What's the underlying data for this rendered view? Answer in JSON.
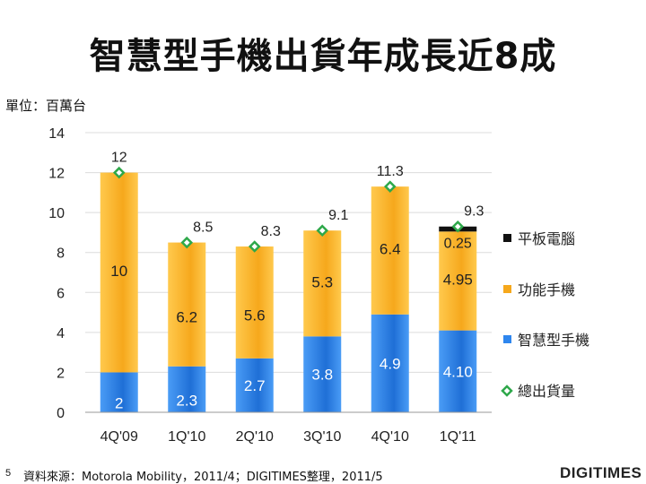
{
  "title": "智慧型手機出貨年成長近8成",
  "unit_label": "單位：百萬台",
  "footer": {
    "page_number": "5",
    "source": "資料來源：Motorola Mobility，2011/4；DIGITIMES整理，2011/5",
    "logo": "DIGITIMES"
  },
  "colors": {
    "smartphone": "#2e86ee",
    "feature_phone": "#fbb52c",
    "tablet": "#111111",
    "total_marker": "#2ea84a",
    "grid": "#dcdcdc"
  },
  "chart_data": {
    "type": "bar",
    "stacked": true,
    "title": "智慧型手機出貨年成長近8成",
    "ylabel": "單位：百萬台",
    "ylim": [
      0,
      14
    ],
    "yticks": [
      0,
      2,
      4,
      6,
      8,
      10,
      12,
      14
    ],
    "grid": true,
    "legend_position": "right",
    "categories": [
      "4Q'09",
      "1Q'10",
      "2Q'10",
      "3Q'10",
      "4Q'10",
      "1Q'11"
    ],
    "series": [
      {
        "name": "智慧型手機",
        "color": "#2e86ee",
        "values": [
          2,
          2.3,
          2.7,
          3.8,
          4.9,
          4.1
        ],
        "labels": [
          "2",
          "2.3",
          "2.7",
          "3.8",
          "4.9",
          "4.10"
        ]
      },
      {
        "name": "功能手機",
        "color": "#fbb52c",
        "values": [
          10,
          6.2,
          5.6,
          5.3,
          6.4,
          4.95
        ],
        "labels": [
          "10",
          "6.2",
          "5.6",
          "5.3",
          "6.4",
          "4.95"
        ]
      },
      {
        "name": "平板電腦",
        "color": "#111111",
        "values": [
          0,
          0,
          0,
          0,
          0,
          0.25
        ],
        "labels": [
          "",
          "",
          "",
          "",
          "",
          "0.25"
        ]
      }
    ],
    "totals": {
      "name": "總出貨量",
      "values": [
        12,
        8.5,
        8.3,
        9.1,
        11.3,
        9.3
      ],
      "labels": [
        "12",
        "8.5",
        "8.3",
        "9.1",
        "11.3",
        "9.3"
      ]
    },
    "legend_order": [
      "平板電腦",
      "功能手機",
      "智慧型手機",
      "總出貨量"
    ]
  }
}
